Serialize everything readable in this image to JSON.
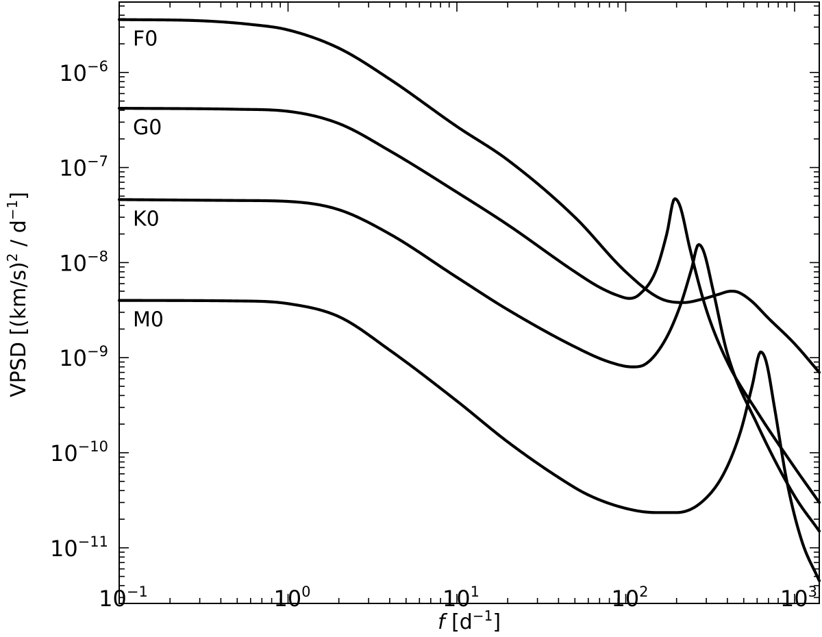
{
  "chart_data": {
    "type": "line",
    "x_scale": "log",
    "y_scale": "log",
    "xlabel": {
      "symbol": "f",
      "unit_open": " [d",
      "unit_exp": "−1",
      "unit_close": "]"
    },
    "ylabel": {
      "base": "VPSD [(km/s)",
      "exp1": "2",
      "middle": " / d",
      "exp2": "−1",
      "close": "]"
    },
    "xlim": [
      0.1,
      1400
    ],
    "ylim": [
      2.6e-12,
      5.5e-06
    ],
    "x_ticks": [
      {
        "value": 0.1,
        "base": "10",
        "exp": "−1"
      },
      {
        "value": 1,
        "base": "10",
        "exp": "0"
      },
      {
        "value": 10,
        "base": "10",
        "exp": "1"
      },
      {
        "value": 100,
        "base": "10",
        "exp": "2"
      },
      {
        "value": 1000,
        "base": "10",
        "exp": "3"
      }
    ],
    "y_ticks": [
      {
        "value": 1e-11,
        "base": "10",
        "exp": "−11"
      },
      {
        "value": 1e-10,
        "base": "10",
        "exp": "−10"
      },
      {
        "value": 1e-09,
        "base": "10",
        "exp": "−9"
      },
      {
        "value": 1e-08,
        "base": "10",
        "exp": "−8"
      },
      {
        "value": 1e-07,
        "base": "10",
        "exp": "−7"
      },
      {
        "value": 1e-06,
        "base": "10",
        "exp": "−6"
      }
    ],
    "grid": false,
    "line_color": "#000000",
    "series": [
      {
        "name": "F0",
        "points": [
          [
            0.1,
            3.6e-06
          ],
          [
            0.3,
            3.5e-06
          ],
          [
            0.6,
            3.2e-06
          ],
          [
            1,
            2.8e-06
          ],
          [
            2,
            1.8e-06
          ],
          [
            4,
            8.5e-07
          ],
          [
            10,
            2.7e-07
          ],
          [
            20,
            1.2e-07
          ],
          [
            50,
            3e-08
          ],
          [
            100,
            8e-09
          ],
          [
            160,
            4.2e-09
          ],
          [
            220,
            3.8e-09
          ],
          [
            280,
            4.1e-09
          ],
          [
            350,
            4.6e-09
          ],
          [
            420,
            5e-09
          ],
          [
            460,
            4.9e-09
          ],
          [
            550,
            4e-09
          ],
          [
            700,
            2.6e-09
          ],
          [
            1000,
            1.4e-09
          ],
          [
            1400,
            7e-10
          ]
        ]
      },
      {
        "name": "G0",
        "points": [
          [
            0.1,
            4.2e-07
          ],
          [
            0.5,
            4.1e-07
          ],
          [
            1,
            3.9e-07
          ],
          [
            2,
            2.9e-07
          ],
          [
            4,
            1.5e-07
          ],
          [
            10,
            5.5e-08
          ],
          [
            20,
            2.5e-08
          ],
          [
            50,
            8e-09
          ],
          [
            70,
            5.5e-09
          ],
          [
            90,
            4.5e-09
          ],
          [
            105,
            4.2e-09
          ],
          [
            120,
            4.6e-09
          ],
          [
            150,
            8e-09
          ],
          [
            175,
            2e-08
          ],
          [
            195,
            4.7e-08
          ],
          [
            210,
            3.9e-08
          ],
          [
            240,
            1.4e-08
          ],
          [
            300,
            3.2e-09
          ],
          [
            400,
            9e-10
          ],
          [
            600,
            2.7e-10
          ],
          [
            1000,
            7e-11
          ],
          [
            1400,
            3e-11
          ]
        ]
      },
      {
        "name": "K0",
        "points": [
          [
            0.1,
            4.6e-08
          ],
          [
            0.5,
            4.5e-08
          ],
          [
            1,
            4.4e-08
          ],
          [
            2,
            3.6e-08
          ],
          [
            4,
            2e-08
          ],
          [
            10,
            7e-09
          ],
          [
            20,
            3.2e-09
          ],
          [
            50,
            1.3e-09
          ],
          [
            80,
            9e-10
          ],
          [
            110,
            8e-10
          ],
          [
            130,
            8.5e-10
          ],
          [
            170,
            1.5e-09
          ],
          [
            210,
            3.5e-09
          ],
          [
            245,
            8.5e-09
          ],
          [
            270,
            1.55e-08
          ],
          [
            290,
            1.3e-08
          ],
          [
            330,
            5e-09
          ],
          [
            400,
            1.1e-09
          ],
          [
            600,
            2e-10
          ],
          [
            1000,
            3.5e-11
          ],
          [
            1400,
            1.5e-11
          ]
        ]
      },
      {
        "name": "M0",
        "points": [
          [
            0.1,
            4e-09
          ],
          [
            0.5,
            3.95e-09
          ],
          [
            1,
            3.7e-09
          ],
          [
            2,
            2.7e-09
          ],
          [
            4,
            1.2e-09
          ],
          [
            10,
            3.5e-10
          ],
          [
            20,
            1.3e-10
          ],
          [
            40,
            5.5e-11
          ],
          [
            60,
            3.6e-11
          ],
          [
            100,
            2.6e-11
          ],
          [
            150,
            2.35e-11
          ],
          [
            200,
            2.35e-11
          ],
          [
            280,
            3e-11
          ],
          [
            380,
            6e-11
          ],
          [
            480,
            1.7e-10
          ],
          [
            560,
            5e-10
          ],
          [
            630,
            1.15e-09
          ],
          [
            680,
            9e-10
          ],
          [
            760,
            3e-10
          ],
          [
            900,
            5e-11
          ],
          [
            1100,
            1.2e-11
          ],
          [
            1400,
            4.5e-12
          ]
        ]
      }
    ]
  }
}
